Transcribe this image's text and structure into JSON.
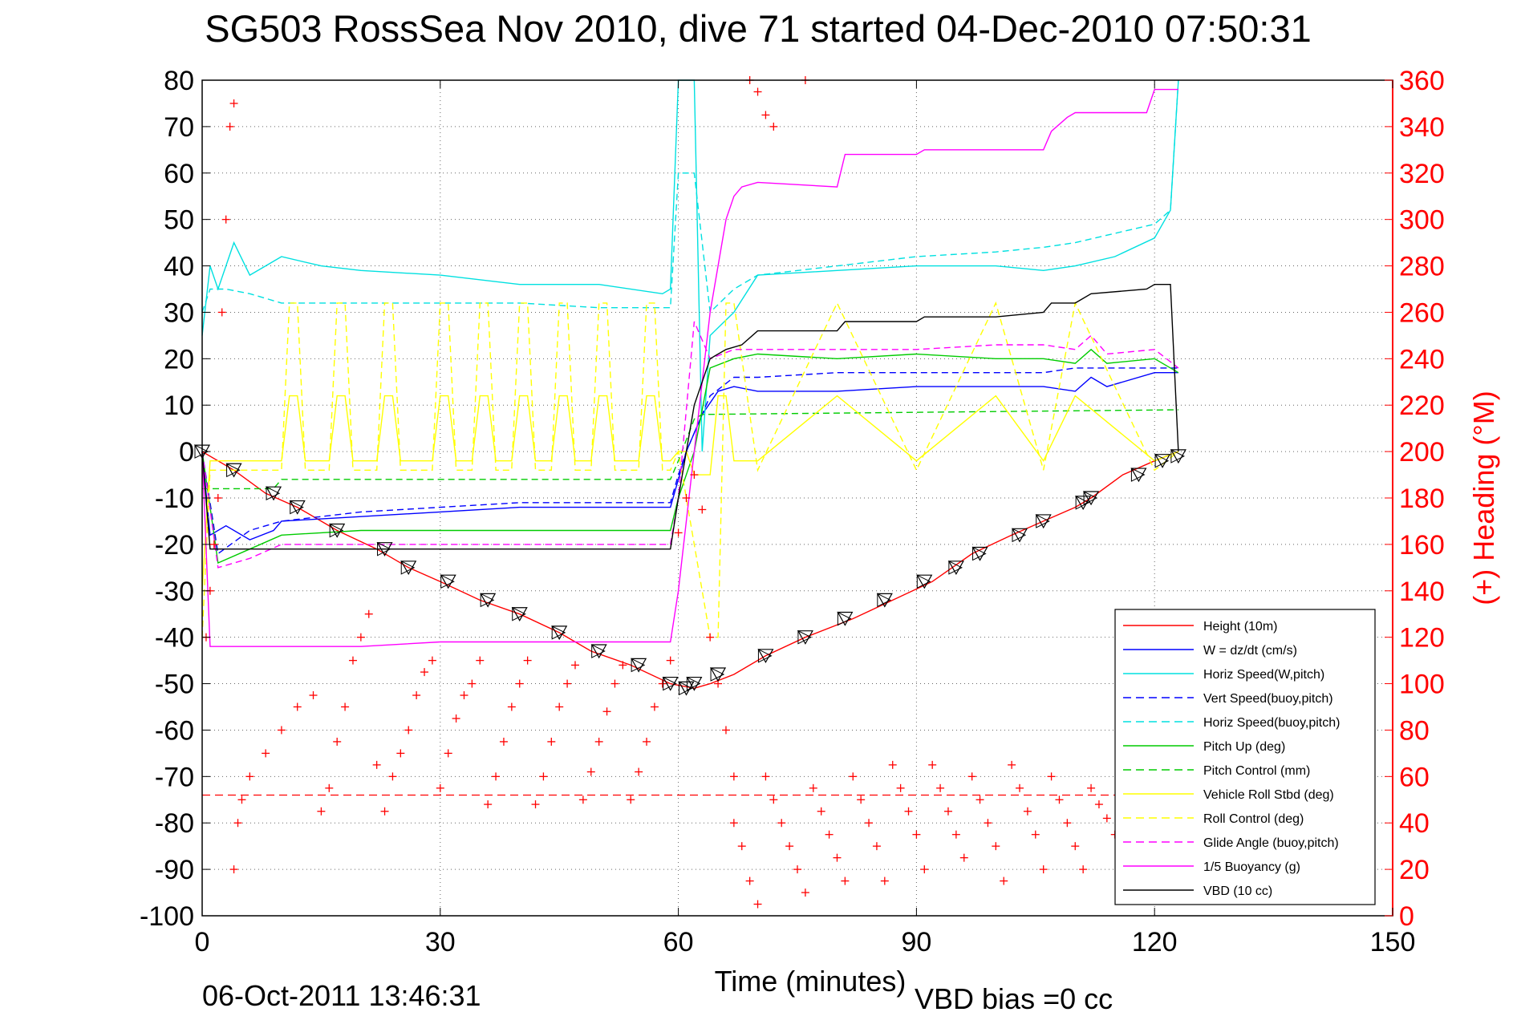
{
  "chart_data": {
    "type": "line",
    "title": "SG503 RossSea Nov 2010, dive 71 started 04-Dec-2010 07:50:31",
    "xlabel": "Time (minutes)",
    "ylabel_right": "(+) Heading (°M)",
    "xlim": [
      0,
      150
    ],
    "ylim_left": [
      -100,
      80
    ],
    "ylim_right": [
      0,
      360
    ],
    "x_ticks": [
      0,
      30,
      60,
      90,
      120,
      150
    ],
    "y_left_ticks": [
      80,
      70,
      60,
      50,
      40,
      30,
      20,
      10,
      0,
      -10,
      -20,
      -30,
      -40,
      -50,
      -60,
      -70,
      -80,
      -90,
      -100
    ],
    "y_right_ticks": [
      360,
      340,
      320,
      300,
      280,
      260,
      240,
      220,
      200,
      180,
      160,
      140,
      120,
      100,
      80,
      60,
      40,
      20,
      0
    ],
    "grid": true,
    "legend_position": "bottom-right",
    "footer_date": "06-Oct-2011 13:46:31",
    "footer_bias": "VBD bias =0 cc",
    "series": [
      {
        "name": "Height (10m)",
        "color": "#ff0000",
        "style": "solid",
        "x": [
          0,
          4,
          8,
          12,
          17,
          22,
          26,
          30,
          35,
          40,
          45,
          49,
          54,
          59,
          62,
          64,
          67,
          71,
          76,
          82,
          87,
          92,
          97,
          102,
          106,
          110,
          112,
          116,
          120,
          123
        ],
        "y": [
          0,
          -4,
          -9,
          -12,
          -17,
          -21,
          -25,
          -28,
          -32,
          -35,
          -39,
          -43,
          -46,
          -50,
          -51,
          -50,
          -48,
          -44,
          -40,
          -36,
          -32,
          -28,
          -22,
          -18,
          -15,
          -12,
          -10,
          -5,
          -2,
          0
        ]
      },
      {
        "name": "W = dz/dt (cm/s)",
        "color": "#0000ff",
        "style": "solid",
        "x": [
          0,
          1,
          3,
          6,
          9,
          10,
          20,
          30,
          40,
          50,
          59,
          60,
          61,
          63,
          65,
          67,
          70,
          80,
          90,
          100,
          106,
          110,
          112,
          114,
          120,
          123
        ],
        "y": [
          0,
          -18,
          -16,
          -19,
          -17,
          -15,
          -14,
          -13,
          -12,
          -12,
          -12,
          -6,
          0,
          8,
          13,
          14,
          13,
          13,
          14,
          14,
          14,
          13,
          16,
          14,
          17,
          17
        ]
      },
      {
        "name": "Horiz Speed(W,pitch)",
        "color": "#00e0e0",
        "style": "solid",
        "x": [
          0,
          1,
          2,
          4,
          6,
          8,
          10,
          15,
          20,
          30,
          40,
          50,
          58,
          59,
          60,
          62,
          63,
          64,
          67,
          70,
          80,
          90,
          100,
          106,
          110,
          115,
          120,
          122,
          123
        ],
        "y": [
          25,
          40,
          35,
          45,
          38,
          40,
          42,
          40,
          39,
          38,
          36,
          36,
          34,
          35,
          90,
          90,
          0,
          25,
          30,
          38,
          39,
          40,
          40,
          39,
          40,
          42,
          46,
          52,
          90
        ]
      },
      {
        "name": "Vert Speed(buoy,pitch)",
        "color": "#0000ff",
        "style": "dashed",
        "x": [
          0,
          2,
          6,
          10,
          20,
          30,
          40,
          50,
          59,
          60,
          61,
          64,
          67,
          70,
          80,
          90,
          100,
          106,
          110,
          115,
          120,
          123
        ],
        "y": [
          0,
          -22,
          -17,
          -15,
          -13,
          -12,
          -11,
          -11,
          -11,
          -5,
          0,
          12,
          16,
          16,
          17,
          17,
          17,
          17,
          18,
          18,
          18,
          18
        ]
      },
      {
        "name": "Horiz Speed(buoy,pitch)",
        "color": "#00e0e0",
        "style": "dashed",
        "x": [
          0,
          1,
          3,
          6,
          10,
          20,
          30,
          40,
          50,
          59,
          60,
          62,
          64,
          67,
          70,
          80,
          90,
          100,
          106,
          110,
          115,
          120,
          122,
          123
        ],
        "y": [
          30,
          35,
          35,
          34,
          32,
          32,
          32,
          32,
          31,
          31,
          60,
          60,
          30,
          35,
          38,
          40,
          42,
          43,
          44,
          45,
          47,
          49,
          52,
          90
        ]
      },
      {
        "name": "Pitch Up (deg)",
        "color": "#00cc00",
        "style": "solid",
        "x": [
          0,
          2,
          6,
          10,
          20,
          30,
          40,
          50,
          59,
          60,
          62,
          64,
          67,
          70,
          80,
          90,
          100,
          106,
          110,
          112,
          114,
          120,
          123
        ],
        "y": [
          0,
          -24,
          -21,
          -18,
          -17,
          -17,
          -17,
          -17,
          -17,
          -10,
          0,
          18,
          20,
          21,
          20,
          21,
          20,
          20,
          19,
          22,
          19,
          20,
          17
        ]
      },
      {
        "name": "Pitch Control (mm)",
        "color": "#00cc00",
        "style": "dashed",
        "x": [
          0,
          1,
          9,
          10,
          59,
          60,
          62,
          63,
          123
        ],
        "y": [
          -8,
          -8,
          -8,
          -6,
          -6,
          -2,
          7,
          8,
          9
        ]
      },
      {
        "name": "Vehicle Roll Stbd (deg)",
        "color": "#ffff00",
        "style": "solid",
        "x": [
          0,
          1,
          10,
          11,
          12,
          13,
          16,
          17,
          18,
          19,
          22,
          23,
          24,
          25,
          29,
          30,
          31,
          32,
          34,
          35,
          36,
          37,
          39,
          40,
          41,
          42,
          44,
          45,
          46,
          47,
          49,
          50,
          51,
          52,
          55,
          56,
          57,
          58,
          59,
          60,
          61,
          62,
          64,
          65,
          66,
          67,
          70,
          80,
          90,
          100,
          106,
          110,
          120,
          123
        ],
        "y": [
          -30,
          -2,
          -2,
          12,
          12,
          -2,
          -2,
          12,
          12,
          -2,
          -2,
          12,
          12,
          -2,
          -2,
          12,
          12,
          -2,
          -2,
          12,
          12,
          -2,
          -2,
          12,
          12,
          -2,
          -2,
          12,
          12,
          -2,
          -2,
          12,
          12,
          -2,
          -2,
          12,
          12,
          -2,
          -2,
          0,
          0,
          -5,
          -5,
          12,
          12,
          -2,
          -2,
          12,
          -2,
          12,
          -2,
          12,
          -2,
          0
        ]
      },
      {
        "name": "Roll Control (deg)",
        "color": "#ffff00",
        "style": "dashed",
        "x": [
          0,
          1,
          10,
          11,
          12,
          13,
          16,
          17,
          18,
          19,
          22,
          23,
          24,
          25,
          29,
          30,
          31,
          32,
          34,
          35,
          36,
          37,
          39,
          40,
          41,
          42,
          44,
          45,
          46,
          47,
          49,
          50,
          51,
          52,
          55,
          56,
          57,
          58,
          59,
          60,
          64,
          65,
          66,
          67,
          70,
          80,
          90,
          100,
          106,
          110,
          120,
          123
        ],
        "y": [
          -40,
          -4,
          -4,
          32,
          32,
          -4,
          -4,
          32,
          32,
          -4,
          -4,
          32,
          32,
          -4,
          -4,
          32,
          32,
          -4,
          -4,
          32,
          32,
          -4,
          -4,
          32,
          32,
          -4,
          -4,
          32,
          32,
          -4,
          -4,
          32,
          32,
          -4,
          -4,
          32,
          32,
          -4,
          -4,
          0,
          -40,
          -40,
          32,
          32,
          -4,
          32,
          -4,
          32,
          -4,
          32,
          -4,
          0
        ]
      },
      {
        "name": "Glide Angle (buoy,pitch)",
        "color": "#ff00ff",
        "style": "dashed",
        "x": [
          0,
          2,
          6,
          10,
          20,
          30,
          40,
          50,
          59,
          60,
          62,
          64,
          67,
          70,
          80,
          90,
          100,
          106,
          110,
          112,
          114,
          120,
          123
        ],
        "y": [
          0,
          -25,
          -23,
          -20,
          -20,
          -20,
          -20,
          -20,
          -20,
          -10,
          28,
          20,
          22,
          22,
          22,
          22,
          23,
          23,
          22,
          25,
          21,
          22,
          18
        ]
      },
      {
        "name": "1/5 Buoyancy (g)",
        "color": "#ff00ff",
        "style": "solid",
        "x": [
          0,
          1,
          10,
          20,
          30,
          40,
          50,
          59,
          60,
          62,
          64,
          66,
          67,
          68,
          70,
          80,
          81,
          90,
          91,
          100,
          106,
          107,
          109,
          110,
          112,
          119,
          120,
          122,
          123
        ],
        "y": [
          0,
          -42,
          -42,
          -42,
          -41,
          -41,
          -41,
          -41,
          -30,
          0,
          30,
          50,
          55,
          57,
          58,
          57,
          64,
          64,
          65,
          65,
          65,
          69,
          72,
          73,
          73,
          73,
          78,
          78,
          78
        ]
      },
      {
        "name": "VBD (10 cc)",
        "color": "#000000",
        "style": "solid",
        "x": [
          0,
          1,
          10,
          20,
          30,
          40,
          50,
          59,
          60,
          62,
          64,
          66,
          68,
          70,
          80,
          81,
          90,
          91,
          100,
          106,
          107,
          110,
          112,
          119,
          120,
          122,
          123
        ],
        "y": [
          0,
          -21,
          -21,
          -21,
          -21,
          -21,
          -21,
          -21,
          -10,
          10,
          20,
          22,
          23,
          26,
          26,
          28,
          28,
          29,
          29,
          30,
          32,
          32,
          34,
          35,
          36,
          36,
          0
        ]
      }
    ],
    "heading": {
      "name": "Heading",
      "color": "#ff0000",
      "marker": "+",
      "mean_deg": 52,
      "points_right_axis": [
        [
          0.5,
          120
        ],
        [
          1,
          140
        ],
        [
          1.5,
          160
        ],
        [
          2,
          180
        ],
        [
          2.5,
          260
        ],
        [
          3,
          300
        ],
        [
          3.5,
          340
        ],
        [
          4,
          350
        ],
        [
          4,
          20
        ],
        [
          4.5,
          40
        ],
        [
          5,
          50
        ],
        [
          6,
          60
        ],
        [
          8,
          70
        ],
        [
          10,
          80
        ],
        [
          12,
          90
        ],
        [
          14,
          95
        ],
        [
          15,
          45
        ],
        [
          16,
          55
        ],
        [
          17,
          75
        ],
        [
          18,
          90
        ],
        [
          19,
          110
        ],
        [
          20,
          120
        ],
        [
          21,
          130
        ],
        [
          22,
          65
        ],
        [
          23,
          45
        ],
        [
          24,
          60
        ],
        [
          25,
          70
        ],
        [
          26,
          80
        ],
        [
          27,
          95
        ],
        [
          28,
          105
        ],
        [
          29,
          110
        ],
        [
          30,
          55
        ],
        [
          31,
          70
        ],
        [
          32,
          85
        ],
        [
          33,
          95
        ],
        [
          34,
          100
        ],
        [
          35,
          110
        ],
        [
          36,
          48
        ],
        [
          37,
          60
        ],
        [
          38,
          75
        ],
        [
          39,
          90
        ],
        [
          40,
          100
        ],
        [
          41,
          110
        ],
        [
          42,
          48
        ],
        [
          43,
          60
        ],
        [
          44,
          75
        ],
        [
          45,
          90
        ],
        [
          46,
          100
        ],
        [
          47,
          108
        ],
        [
          48,
          50
        ],
        [
          49,
          62
        ],
        [
          50,
          75
        ],
        [
          51,
          88
        ],
        [
          52,
          100
        ],
        [
          53,
          108
        ],
        [
          54,
          50
        ],
        [
          55,
          62
        ],
        [
          56,
          75
        ],
        [
          57,
          90
        ],
        [
          58,
          100
        ],
        [
          59,
          110
        ],
        [
          60,
          165
        ],
        [
          61,
          180
        ],
        [
          62,
          190
        ],
        [
          63,
          175
        ],
        [
          64,
          120
        ],
        [
          65,
          100
        ],
        [
          66,
          80
        ],
        [
          67,
          60
        ],
        [
          70,
          355
        ],
        [
          71,
          345
        ],
        [
          72,
          340
        ],
        [
          69,
          360
        ],
        [
          76,
          360
        ],
        [
          67,
          40
        ],
        [
          68,
          30
        ],
        [
          69,
          15
        ],
        [
          70,
          5
        ],
        [
          71,
          60
        ],
        [
          72,
          50
        ],
        [
          73,
          40
        ],
        [
          74,
          30
        ],
        [
          75,
          20
        ],
        [
          76,
          10
        ],
        [
          77,
          55
        ],
        [
          78,
          45
        ],
        [
          79,
          35
        ],
        [
          80,
          25
        ],
        [
          81,
          15
        ],
        [
          82,
          60
        ],
        [
          83,
          50
        ],
        [
          84,
          40
        ],
        [
          85,
          30
        ],
        [
          86,
          15
        ],
        [
          87,
          65
        ],
        [
          88,
          55
        ],
        [
          89,
          45
        ],
        [
          90,
          35
        ],
        [
          91,
          20
        ],
        [
          92,
          65
        ],
        [
          93,
          55
        ],
        [
          94,
          45
        ],
        [
          95,
          35
        ],
        [
          96,
          25
        ],
        [
          97,
          60
        ],
        [
          98,
          50
        ],
        [
          99,
          40
        ],
        [
          100,
          30
        ],
        [
          101,
          15
        ],
        [
          102,
          65
        ],
        [
          103,
          55
        ],
        [
          104,
          45
        ],
        [
          105,
          35
        ],
        [
          106,
          20
        ],
        [
          107,
          60
        ],
        [
          108,
          50
        ],
        [
          109,
          40
        ],
        [
          110,
          30
        ],
        [
          111,
          20
        ],
        [
          112,
          55
        ],
        [
          113,
          48
        ],
        [
          114,
          42
        ],
        [
          115,
          35
        ],
        [
          116,
          45
        ]
      ]
    },
    "glider_markers": {
      "symbol": "triangle",
      "x": [
        0,
        4,
        9,
        12,
        17,
        23,
        26,
        31,
        36,
        40,
        45,
        50,
        55,
        59,
        61,
        62,
        65,
        71,
        76,
        81,
        86,
        91,
        95,
        98,
        103,
        106,
        111,
        112,
        118,
        121,
        123
      ],
      "y": [
        0,
        -4,
        -9,
        -12,
        -17,
        -21,
        -25,
        -28,
        -32,
        -35,
        -39,
        -43,
        -46,
        -50,
        -51,
        -50,
        -48,
        -44,
        -40,
        -36,
        -32,
        -28,
        -25,
        -22,
        -18,
        -15,
        -11,
        -10,
        -5,
        -2,
        -1
      ]
    }
  }
}
